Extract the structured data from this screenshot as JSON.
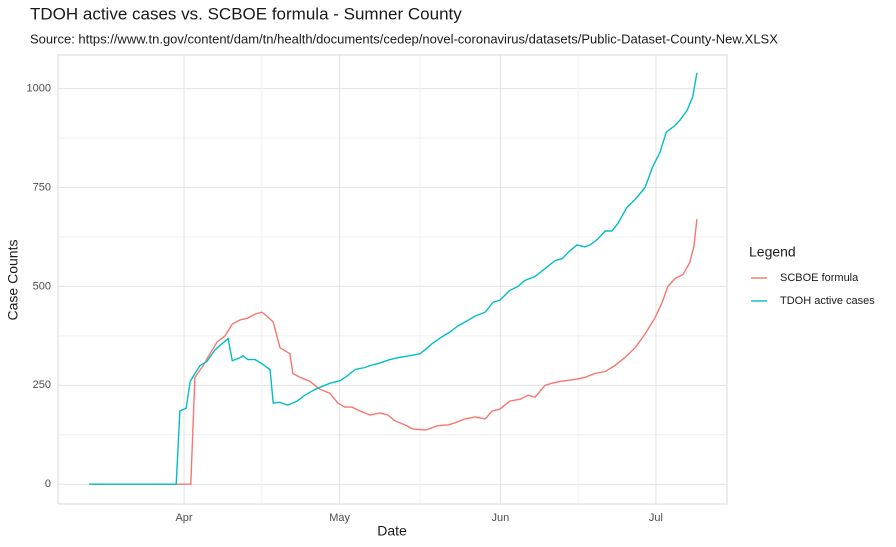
{
  "chart_data": {
    "type": "line",
    "title": "TDOH active cases vs. SCBOE formula - Sumner County",
    "subtitle": "Source: https://www.tn.gov/content/dam/tn/health/documents/cedep/novel-coronavirus/datasets/Public-Dataset-County-New.XLSX",
    "x_label": "Date",
    "y_label": "Case Counts",
    "legend_title": "Legend",
    "legend_position": "right",
    "grid": true,
    "xlim": [
      67.7,
      196.7
    ],
    "xticks": [
      {
        "value": 92,
        "label": "Apr"
      },
      {
        "value": 122,
        "label": "May"
      },
      {
        "value": 153,
        "label": "Jun"
      },
      {
        "value": 183,
        "label": "Jul"
      }
    ],
    "ylim": [
      -50,
      1085
    ],
    "yticks": [
      0,
      250,
      500,
      750,
      1000
    ],
    "series": [
      {
        "name": "SCBOE formula",
        "color": "#F8766D",
        "x": [
          73.7,
          93.3,
          94.1,
          95.7,
          97,
          98.4,
          99.9,
          101.3,
          102.8,
          104.3,
          105.7,
          107,
          108,
          109.2,
          110.5,
          112.4,
          113,
          114.4,
          116.3,
          118.2,
          120.1,
          121.7,
          123,
          124.4,
          125.9,
          127.9,
          129.8,
          131.3,
          132.7,
          134.6,
          136,
          138.5,
          141,
          142.9,
          144.2,
          146.2,
          148.1,
          150.1,
          151.4,
          152.9,
          154.8,
          156.8,
          158.3,
          159.7,
          161.6,
          162.9,
          164.5,
          167.4,
          169.3,
          171.2,
          173.2,
          175.1,
          177,
          179,
          180.9,
          182.8,
          184.2,
          185.3,
          186.7,
          188.2,
          189.5,
          190.3,
          190.9
        ],
        "values": [
          0,
          0,
          270,
          300,
          330,
          360,
          375,
          405,
          415,
          420,
          430,
          435,
          425,
          410,
          345,
          330,
          280,
          270,
          260,
          240,
          230,
          205,
          195,
          195,
          185,
          175,
          180,
          175,
          160,
          150,
          140,
          137,
          148,
          150,
          155,
          165,
          170,
          165,
          185,
          190,
          210,
          215,
          225,
          220,
          250,
          255,
          260,
          265,
          270,
          280,
          285,
          300,
          320,
          345,
          380,
          420,
          460,
          500,
          520,
          530,
          560,
          600,
          670
        ]
      },
      {
        "name": "TDOH active cases",
        "color": "#00BFC4",
        "x": [
          73.7,
          90.5,
          91.2,
          92.4,
          93.2,
          94.1,
          95.1,
          96.4,
          98,
          99.3,
          100.5,
          101.3,
          102.8,
          103.4,
          104.3,
          105.7,
          107,
          108,
          108.6,
          109.2,
          110.5,
          112,
          113.8,
          115.3,
          117.3,
          120.1,
          122.1,
          123.6,
          125,
          126.9,
          127.9,
          129.4,
          131.7,
          133.3,
          135.6,
          137.5,
          138.5,
          139.8,
          141.4,
          143.3,
          144.8,
          146.2,
          148.1,
          150.1,
          151.6,
          152.9,
          154.8,
          156.4,
          157.7,
          159.7,
          161.6,
          163.5,
          164.9,
          166.4,
          167.8,
          169.3,
          170.3,
          171.8,
          173.2,
          174.5,
          175.7,
          177.4,
          179,
          180.9,
          182.3,
          183.8,
          185,
          186.5,
          187.6,
          189,
          190.1,
          190.9
        ],
        "values": [
          0,
          0,
          185,
          192,
          260,
          280,
          300,
          310,
          340,
          355,
          368,
          312,
          320,
          325,
          315,
          315,
          305,
          295,
          290,
          205,
          207,
          200,
          210,
          225,
          240,
          255,
          262,
          275,
          290,
          295,
          300,
          305,
          315,
          320,
          325,
          330,
          340,
          355,
          370,
          385,
          400,
          410,
          425,
          435,
          460,
          465,
          490,
          500,
          515,
          525,
          545,
          565,
          570,
          590,
          605,
          600,
          605,
          620,
          640,
          640,
          660,
          700,
          720,
          750,
          800,
          840,
          890,
          905,
          920,
          945,
          980,
          1040
        ]
      }
    ]
  }
}
